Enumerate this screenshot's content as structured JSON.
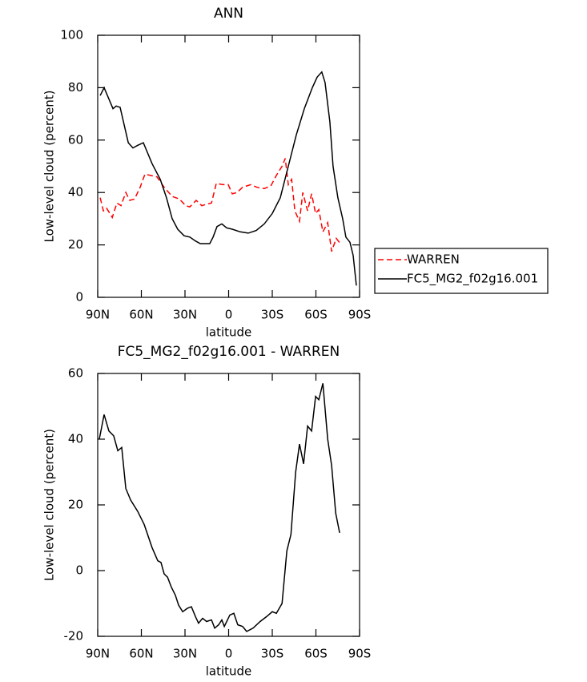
{
  "chart_data": [
    {
      "type": "line",
      "title": "ANN",
      "xlabel": "latitude",
      "ylabel": "Low-level cloud (percent)",
      "xlim": [
        90,
        -90
      ],
      "xticks": [
        {
          "value": 90,
          "label": "90N"
        },
        {
          "value": 60,
          "label": "60N"
        },
        {
          "value": 30,
          "label": "30N"
        },
        0,
        {
          "value": -30,
          "label": "30S"
        },
        {
          "value": -60,
          "label": "60S"
        },
        {
          "value": -90,
          "label": "90S"
        }
      ],
      "ylim": [
        0,
        100
      ],
      "yticks": [
        0,
        20,
        40,
        60,
        80,
        100
      ],
      "legend": "right",
      "series": [
        {
          "name": "WARREN",
          "color": "#ff0000",
          "dash": true,
          "x": [
            88.3,
            86.1,
            83.9,
            80,
            76.8,
            74,
            70.7,
            68,
            64.7,
            60.8,
            57.5,
            53.7,
            49.3,
            44.3,
            38.8,
            33.8,
            29.5,
            26.7,
            22.3,
            18.5,
            15.2,
            11.8,
            8.5,
            4.1,
            0.3,
            -2.5,
            -5.8,
            -9.6,
            -15.2,
            -19.5,
            -24.5,
            -29,
            -32.8,
            -36.7,
            -38.9,
            -41,
            -43.3,
            -45.5,
            -48.7,
            -51,
            -54.3,
            -57,
            -59.8,
            -62,
            -64.8,
            -68.1,
            -70.8,
            -74,
            -76.8
          ],
          "values": [
            38,
            33,
            34,
            30.5,
            36,
            35,
            40,
            37,
            37.5,
            42,
            47,
            46.5,
            46,
            42,
            38.5,
            37.5,
            35,
            34.5,
            37,
            35,
            35.5,
            36,
            43.5,
            43,
            43,
            39.5,
            40,
            42,
            43,
            42,
            41.5,
            42.5,
            46.5,
            50,
            53,
            43,
            45,
            33,
            29,
            40,
            33,
            39.5,
            32,
            33.5,
            25,
            28.5,
            17.5,
            22.5,
            20.5
          ]
        },
        {
          "name": "FC5_MG2_f02g16.001",
          "color": "#000000",
          "dash": false,
          "x": [
            88.3,
            85.6,
            79.5,
            77.3,
            74.6,
            69,
            65.8,
            62.5,
            58.6,
            52.6,
            47,
            42.7,
            38.8,
            35,
            30.6,
            26.7,
            22.8,
            19.5,
            13,
            10.7,
            8,
            4.7,
            1.4,
            -2.5,
            -8,
            -13.5,
            -19,
            -24.5,
            -30,
            -35.5,
            -41,
            -46.5,
            -52,
            -57.5,
            -60.8,
            -64,
            -66.3,
            -69.6,
            -71.8,
            -75.1,
            -78.4,
            -80.6,
            -83.4,
            -85.6,
            -87.8
          ],
          "values": [
            77,
            80,
            72,
            73,
            72.5,
            59,
            57,
            58,
            59,
            51,
            45,
            38,
            30,
            26,
            23.5,
            23,
            21.5,
            20.5,
            20.5,
            23,
            27,
            28,
            26.5,
            26,
            25,
            24.5,
            25.5,
            28,
            32,
            38,
            50,
            62,
            72,
            80,
            84,
            86,
            82,
            67,
            50,
            38,
            30,
            23,
            21,
            16,
            4.5
          ]
        }
      ]
    },
    {
      "type": "line",
      "title": "FC5_MG2_f02g16.001 - WARREN",
      "xlabel": "latitude",
      "ylabel": "Low-level cloud (percent)",
      "xlim": [
        90,
        -90
      ],
      "xticks": [
        {
          "value": 90,
          "label": "90N"
        },
        {
          "value": 60,
          "label": "60N"
        },
        {
          "value": 30,
          "label": "30N"
        },
        0,
        {
          "value": -30,
          "label": "30S"
        },
        {
          "value": -60,
          "label": "60S"
        },
        {
          "value": -90,
          "label": "90S"
        }
      ],
      "ylim": [
        -20,
        60
      ],
      "yticks": [
        -20,
        0,
        20,
        40,
        60
      ],
      "series": [
        {
          "color": "#000000",
          "dash": false,
          "x": [
            88.9,
            85.6,
            82.3,
            79,
            76.2,
            73.5,
            70.7,
            67.4,
            62.5,
            58,
            52.6,
            48.7,
            46.5,
            44.3,
            42,
            39.4,
            36.6,
            34.4,
            31.6,
            28.4,
            25.6,
            22.8,
            20.7,
            17.9,
            15.2,
            11.8,
            9.6,
            6.9,
            4.7,
            3,
            -0.8,
            -3.6,
            -6.3,
            -9.6,
            -12.4,
            -16.8,
            -21.7,
            -26.1,
            -30,
            -32.8,
            -36.7,
            -40,
            -42.8,
            -46.1,
            -48.7,
            -51.5,
            -54.3,
            -57,
            -59.8,
            -62,
            -64.8,
            -68.1,
            -70.8,
            -73.6,
            -76.3
          ],
          "values": [
            40,
            47.5,
            42.5,
            41,
            36.5,
            37.5,
            25,
            21.5,
            18,
            14,
            7,
            3,
            2.5,
            -1,
            -2,
            -5,
            -7.5,
            -10.5,
            -12.5,
            -11.5,
            -11,
            -14,
            -16,
            -14.5,
            -15.5,
            -15,
            -17.5,
            -16.5,
            -15,
            -17,
            -13.5,
            -13,
            -16.5,
            -17,
            -18.5,
            -17.5,
            -15.5,
            -14,
            -12.5,
            -13,
            -10,
            6,
            11,
            30,
            38.5,
            32.5,
            44,
            42.5,
            53,
            52,
            57,
            40,
            32,
            17.5,
            11.5
          ]
        }
      ]
    }
  ]
}
